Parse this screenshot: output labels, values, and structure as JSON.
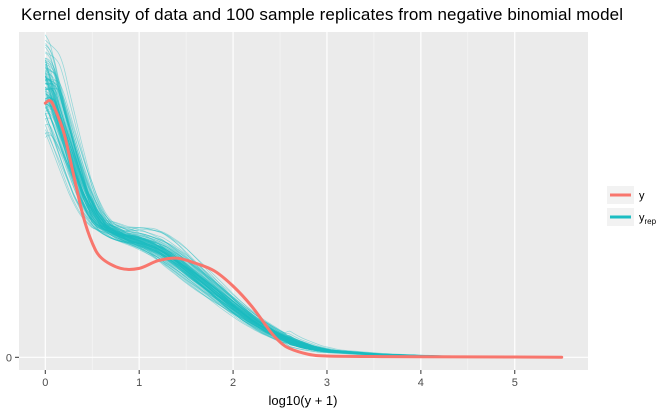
{
  "chart_data": {
    "type": "line",
    "title": "Kernel density of data and 100 sample replicates from negative binomial model",
    "xlabel": "log10(y + 1)",
    "ylabel": "",
    "xlim": [
      -0.28,
      5.78
    ],
    "ylim": [
      -0.05,
      1.28
    ],
    "x_ticks": [
      0,
      1,
      2,
      3,
      4,
      5
    ],
    "y_ticks": [
      0
    ],
    "grid": true,
    "legend_position": "right",
    "replicate_count": 100,
    "series": [
      {
        "name": "y",
        "color": "#F8766D",
        "x": [
          0,
          0.05,
          0.1,
          0.2,
          0.3,
          0.4,
          0.5,
          0.6,
          0.8,
          1.0,
          1.2,
          1.4,
          1.6,
          1.8,
          2.0,
          2.2,
          2.4,
          2.5,
          2.6,
          2.8,
          3.0,
          3.5,
          4.0,
          5.0,
          5.5
        ],
        "values": [
          1.0,
          1.01,
          0.98,
          0.88,
          0.72,
          0.56,
          0.45,
          0.39,
          0.35,
          0.35,
          0.38,
          0.39,
          0.37,
          0.34,
          0.28,
          0.2,
          0.1,
          0.06,
          0.035,
          0.012,
          0.005,
          0.003,
          0.002,
          0.001,
          0.0
        ]
      },
      {
        "name": "y_rep",
        "label_main": "y",
        "label_sub": "rep",
        "color": "#1CBDC2",
        "x": [
          0,
          0.05,
          0.1,
          0.2,
          0.3,
          0.4,
          0.5,
          0.6,
          0.8,
          1.0,
          1.2,
          1.4,
          1.6,
          1.8,
          2.0,
          2.2,
          2.4,
          2.6,
          2.8,
          3.0,
          3.5,
          4.0,
          4.5,
          5.0,
          5.5
        ],
        "values": [
          1.08,
          1.06,
          1.0,
          0.88,
          0.76,
          0.65,
          0.57,
          0.52,
          0.48,
          0.46,
          0.43,
          0.38,
          0.32,
          0.26,
          0.2,
          0.145,
          0.1,
          0.065,
          0.04,
          0.025,
          0.012,
          0.006,
          0.003,
          0.001,
          0.0
        ]
      }
    ]
  }
}
